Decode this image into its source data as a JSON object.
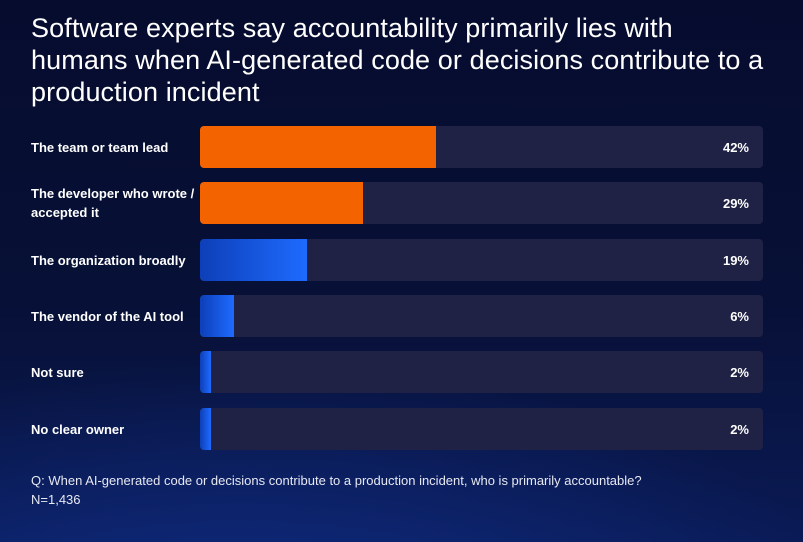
{
  "title": "Software experts say accountability primarily lies with humans when AI-generated code or decisions contribute to a production incident",
  "colors": {
    "highlight": "#f36300",
    "default_start": "#0d3fb8",
    "default_end": "#1e6bff",
    "track": "#1f2244"
  },
  "chart_data": {
    "type": "bar",
    "orientation": "horizontal",
    "categories": [
      "The team or team lead",
      "The developer who wrote / accepted it",
      "The organization broadly",
      "The vendor of the AI tool",
      "Not sure",
      "No clear owner"
    ],
    "values": [
      42,
      29,
      19,
      6,
      2,
      2
    ],
    "value_labels": [
      "42%",
      "29%",
      "19%",
      "6%",
      "2%",
      "2%"
    ],
    "highlight": [
      true,
      true,
      false,
      false,
      false,
      false
    ],
    "xlim": [
      0,
      100
    ],
    "unit": "%"
  },
  "footnote": {
    "question": "Q: When AI-generated code or decisions contribute to a production incident, who is primarily accountable?",
    "sample": "N=1,436"
  }
}
